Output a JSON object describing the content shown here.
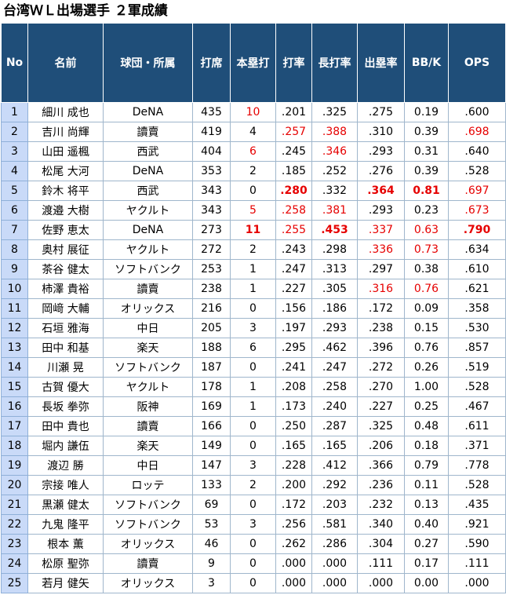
{
  "title": "台湾ＷＬ出場選手 ２軍成績",
  "colors": {
    "header_bg": "#1f4e79",
    "no_col_bg": "#c9daf8",
    "highlight": "#e60000"
  },
  "headers": [
    "No",
    "名前",
    "球団・所属",
    "打席",
    "本塁打",
    "打率",
    "長打率",
    "出塁率",
    "BB/K",
    "OPS"
  ],
  "rows": [
    {
      "no": "1",
      "name": "細川 成也",
      "team": "DeNA",
      "pa": "435",
      "hr": "10",
      "avg": ".201",
      "slg": ".325",
      "obp": ".275",
      "bbk": "0.19",
      "ops": ".600",
      "red": [
        "hr"
      ],
      "bold": []
    },
    {
      "no": "2",
      "name": "吉川 尚輝",
      "team": "讀賣",
      "pa": "419",
      "hr": "4",
      "avg": ".257",
      "slg": ".388",
      "obp": ".310",
      "bbk": "0.39",
      "ops": ".698",
      "red": [
        "avg",
        "slg",
        "ops"
      ],
      "bold": []
    },
    {
      "no": "3",
      "name": "山田 遥楓",
      "team": "西武",
      "pa": "404",
      "hr": "6",
      "avg": ".245",
      "slg": ".346",
      "obp": ".293",
      "bbk": "0.31",
      "ops": ".640",
      "red": [
        "hr",
        "slg"
      ],
      "bold": []
    },
    {
      "no": "4",
      "name": "松尾 大河",
      "team": "DeNA",
      "pa": "353",
      "hr": "2",
      "avg": ".185",
      "slg": ".252",
      "obp": ".276",
      "bbk": "0.39",
      "ops": ".528",
      "red": [],
      "bold": []
    },
    {
      "no": "5",
      "name": "鈴木 将平",
      "team": "西武",
      "pa": "343",
      "hr": "0",
      "avg": ".280",
      "slg": ".332",
      "obp": ".364",
      "bbk": "0.81",
      "ops": ".697",
      "red": [
        "avg",
        "obp",
        "bbk",
        "ops"
      ],
      "bold": [
        "avg",
        "obp",
        "bbk"
      ]
    },
    {
      "no": "6",
      "name": "渡邉 大樹",
      "team": "ヤクルト",
      "pa": "343",
      "hr": "5",
      "avg": ".258",
      "slg": ".381",
      "obp": ".293",
      "bbk": "0.23",
      "ops": ".673",
      "red": [
        "hr",
        "avg",
        "slg",
        "ops"
      ],
      "bold": []
    },
    {
      "no": "7",
      "name": "佐野 恵太",
      "team": "DeNA",
      "pa": "273",
      "hr": "11",
      "avg": ".255",
      "slg": ".453",
      "obp": ".337",
      "bbk": "0.63",
      "ops": ".790",
      "red": [
        "hr",
        "avg",
        "slg",
        "obp",
        "bbk",
        "ops"
      ],
      "bold": [
        "hr",
        "slg",
        "ops"
      ]
    },
    {
      "no": "8",
      "name": "奥村 展征",
      "team": "ヤクルト",
      "pa": "272",
      "hr": "2",
      "avg": ".243",
      "slg": ".298",
      "obp": ".336",
      "bbk": "0.73",
      "ops": ".634",
      "red": [
        "obp",
        "bbk"
      ],
      "bold": []
    },
    {
      "no": "9",
      "name": "茶谷 健太",
      "team": "ソフトバンク",
      "pa": "253",
      "hr": "1",
      "avg": ".247",
      "slg": ".313",
      "obp": ".297",
      "bbk": "0.38",
      "ops": ".610",
      "red": [],
      "bold": []
    },
    {
      "no": "10",
      "name": "柿澤 貴裕",
      "team": "讀賣",
      "pa": "238",
      "hr": "1",
      "avg": ".227",
      "slg": ".305",
      "obp": ".316",
      "bbk": "0.76",
      "ops": ".621",
      "red": [
        "obp",
        "bbk"
      ],
      "bold": []
    },
    {
      "no": "11",
      "name": "岡﨑 大輔",
      "team": "オリックス",
      "pa": "216",
      "hr": "0",
      "avg": ".156",
      "slg": ".186",
      "obp": ".172",
      "bbk": "0.09",
      "ops": ".358",
      "red": [],
      "bold": []
    },
    {
      "no": "12",
      "name": "石垣 雅海",
      "team": "中日",
      "pa": "205",
      "hr": "3",
      "avg": ".197",
      "slg": ".293",
      "obp": ".238",
      "bbk": "0.15",
      "ops": ".530",
      "red": [],
      "bold": []
    },
    {
      "no": "13",
      "name": "田中 和基",
      "team": "楽天",
      "pa": "188",
      "hr": "6",
      "avg": ".295",
      "slg": ".462",
      "obp": ".396",
      "bbk": "0.76",
      "ops": ".857",
      "red": [],
      "bold": []
    },
    {
      "no": "14",
      "name": "川瀬 晃",
      "team": "ソフトバンク",
      "pa": "187",
      "hr": "0",
      "avg": ".241",
      "slg": ".247",
      "obp": ".272",
      "bbk": "0.26",
      "ops": ".519",
      "red": [],
      "bold": []
    },
    {
      "no": "15",
      "name": "古賀 優大",
      "team": "ヤクルト",
      "pa": "178",
      "hr": "1",
      "avg": ".208",
      "slg": ".258",
      "obp": ".270",
      "bbk": "1.00",
      "ops": ".528",
      "red": [],
      "bold": []
    },
    {
      "no": "16",
      "name": "長坂 拳弥",
      "team": "阪神",
      "pa": "169",
      "hr": "1",
      "avg": ".173",
      "slg": ".240",
      "obp": ".227",
      "bbk": "0.25",
      "ops": ".467",
      "red": [],
      "bold": []
    },
    {
      "no": "17",
      "name": "田中 貴也",
      "team": "讀賣",
      "pa": "166",
      "hr": "0",
      "avg": ".250",
      "slg": ".287",
      "obp": ".325",
      "bbk": "0.48",
      "ops": ".611",
      "red": [],
      "bold": []
    },
    {
      "no": "18",
      "name": "堀内 謙伍",
      "team": "楽天",
      "pa": "149",
      "hr": "0",
      "avg": ".165",
      "slg": ".165",
      "obp": ".206",
      "bbk": "0.18",
      "ops": ".371",
      "red": [],
      "bold": []
    },
    {
      "no": "19",
      "name": "渡辺 勝",
      "team": "中日",
      "pa": "147",
      "hr": "3",
      "avg": ".228",
      "slg": ".412",
      "obp": ".366",
      "bbk": "0.79",
      "ops": ".778",
      "red": [],
      "bold": []
    },
    {
      "no": "20",
      "name": "宗接 唯人",
      "team": "ロッテ",
      "pa": "133",
      "hr": "2",
      "avg": ".200",
      "slg": ".292",
      "obp": ".236",
      "bbk": "0.11",
      "ops": ".528",
      "red": [],
      "bold": []
    },
    {
      "no": "21",
      "name": "黒瀬 健太",
      "team": "ソフトバンク",
      "pa": "69",
      "hr": "0",
      "avg": ".172",
      "slg": ".203",
      "obp": ".232",
      "bbk": "0.13",
      "ops": ".435",
      "red": [],
      "bold": []
    },
    {
      "no": "22",
      "name": "九鬼 隆平",
      "team": "ソフトバンク",
      "pa": "53",
      "hr": "3",
      "avg": ".256",
      "slg": ".581",
      "obp": ".340",
      "bbk": "0.40",
      "ops": ".921",
      "red": [],
      "bold": []
    },
    {
      "no": "23",
      "name": "根本 薫",
      "team": "オリックス",
      "pa": "46",
      "hr": "0",
      "avg": ".262",
      "slg": ".286",
      "obp": ".304",
      "bbk": "0.27",
      "ops": ".590",
      "red": [],
      "bold": []
    },
    {
      "no": "24",
      "name": "松原 聖弥",
      "team": "讀賣",
      "pa": "9",
      "hr": "0",
      "avg": ".000",
      "slg": ".000",
      "obp": ".111",
      "bbk": "0.17",
      "ops": ".111",
      "red": [],
      "bold": []
    },
    {
      "no": "25",
      "name": "若月 健矢",
      "team": "オリックス",
      "pa": "3",
      "hr": "0",
      "avg": ".000",
      "slg": ".000",
      "obp": ".000",
      "bbk": "0.00",
      "ops": ".000",
      "red": [],
      "bold": []
    }
  ]
}
